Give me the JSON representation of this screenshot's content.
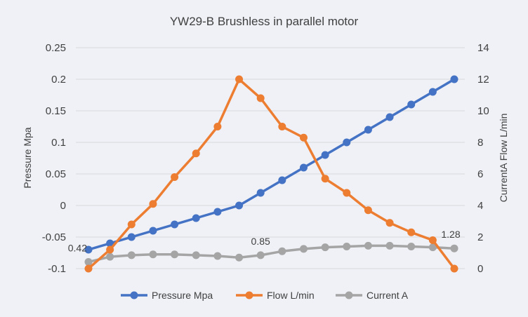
{
  "chart_data": {
    "type": "line",
    "title": "YW29-B Brushless in parallel motor",
    "xlabel": "",
    "ylabel": "Pressure Mpa",
    "y2label": "CurrentA  Flow L/min",
    "ylim": [
      -0.1,
      0.25
    ],
    "y_ticks": [
      "0.25",
      "0.2",
      "0.15",
      "0.1",
      "0.05",
      "0",
      "-0.05",
      "-0.1"
    ],
    "y2lim": [
      0,
      14
    ],
    "y2_ticks": [
      "14",
      "12",
      "10",
      "8",
      "6",
      "4",
      "2",
      "0"
    ],
    "grid": true,
    "legend_position": "bottom",
    "x": [
      1,
      2,
      3,
      4,
      5,
      6,
      7,
      8,
      9,
      10,
      11,
      12,
      13,
      14,
      15,
      16,
      17,
      18
    ],
    "series": [
      {
        "name": "Pressure Mpa",
        "axis": "left",
        "color": "#4472c4",
        "values": [
          -0.07,
          -0.06,
          -0.05,
          -0.04,
          -0.03,
          -0.02,
          -0.01,
          0,
          0.02,
          0.04,
          0.06,
          0.08,
          0.1,
          0.12,
          0.14,
          0.16,
          0.18,
          0.2
        ]
      },
      {
        "name": "Flow L/min",
        "axis": "right",
        "color": "#ed7d31",
        "values": [
          0,
          1.2,
          2.8,
          4.1,
          5.8,
          7.3,
          9.0,
          12.0,
          10.8,
          9.0,
          8.3,
          5.7,
          4.8,
          3.7,
          2.9,
          2.3,
          1.8,
          0
        ]
      },
      {
        "name": "Current A",
        "axis": "right",
        "color": "#a5a5a5",
        "values": [
          0.42,
          0.75,
          0.85,
          0.9,
          0.9,
          0.85,
          0.8,
          0.7,
          0.85,
          1.1,
          1.25,
          1.35,
          1.4,
          1.45,
          1.45,
          1.4,
          1.35,
          1.28
        ]
      }
    ],
    "data_labels": [
      {
        "series": 2,
        "index": 0,
        "text": "0.42"
      },
      {
        "series": 2,
        "index": 8,
        "text": "0.85"
      },
      {
        "series": 2,
        "index": 17,
        "text": "1.28"
      }
    ]
  }
}
